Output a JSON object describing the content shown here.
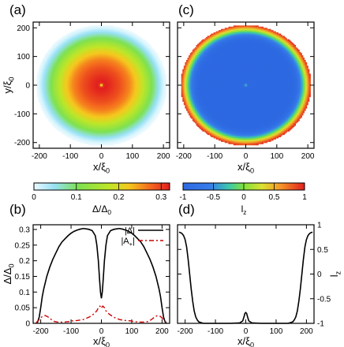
{
  "chart_data": [
    {
      "panel": "(a)",
      "type": "heatmap",
      "description_from_pixels": "radial ring of gap magnitude, maximum near center, small dip at origin",
      "xlabel": "x/ξ0",
      "ylabel": "y/ξ0",
      "xlim": [
        -220,
        220
      ],
      "ylim": [
        -220,
        220
      ],
      "xticks": [
        -200,
        -100,
        0,
        100,
        200
      ],
      "yticks": [
        -200,
        -100,
        0,
        100,
        200
      ],
      "colorbar": {
        "label": "Δ/Δ0",
        "range": [
          0,
          0.32
        ],
        "ticks": [
          0,
          0.1,
          0.2,
          0.3
        ]
      },
      "radial_profile": {
        "r": [
          0,
          6,
          12,
          30,
          60,
          90,
          120,
          150,
          180,
          200,
          210
        ],
        "value": [
          0.12,
          0.3,
          0.32,
          0.31,
          0.29,
          0.26,
          0.21,
          0.14,
          0.06,
          0.01,
          0.0
        ]
      }
    },
    {
      "panel": "(b)",
      "type": "line",
      "xlabel": "x/ξ0",
      "ylabel": "Δ/Δ0",
      "xlim": [
        -225,
        225
      ],
      "ylim": [
        0,
        0.315
      ],
      "xticks": [
        -200,
        -100,
        0,
        100,
        200
      ],
      "yticks": [
        0,
        0.05,
        0.1,
        0.15,
        0.2,
        0.25,
        0.3
      ],
      "legend_position": "top-right",
      "series": [
        {
          "name": "|Δ|",
          "style": "solid",
          "color": "#000000",
          "x": [
            -215,
            -210,
            -205,
            -200,
            -195,
            -190,
            -185,
            -180,
            -170,
            -160,
            -150,
            -140,
            -130,
            -120,
            -110,
            -100,
            -90,
            -80,
            -70,
            -60,
            -50,
            -40,
            -30,
            -20,
            -15,
            -10,
            -6,
            -3,
            0,
            3,
            6,
            10,
            15,
            20,
            30,
            40,
            50,
            60,
            70,
            80,
            90,
            100,
            110,
            120,
            130,
            140,
            150,
            160,
            170,
            180,
            185,
            190,
            195,
            200,
            205,
            210,
            215
          ],
          "y": [
            0,
            0.005,
            0.02,
            0.05,
            0.085,
            0.11,
            0.13,
            0.15,
            0.18,
            0.205,
            0.225,
            0.245,
            0.26,
            0.27,
            0.28,
            0.288,
            0.294,
            0.298,
            0.301,
            0.303,
            0.302,
            0.3,
            0.296,
            0.28,
            0.25,
            0.2,
            0.14,
            0.1,
            0.08,
            0.1,
            0.14,
            0.2,
            0.25,
            0.28,
            0.296,
            0.3,
            0.302,
            0.303,
            0.301,
            0.298,
            0.294,
            0.288,
            0.28,
            0.27,
            0.26,
            0.245,
            0.225,
            0.205,
            0.18,
            0.15,
            0.13,
            0.11,
            0.085,
            0.05,
            0.02,
            0.005,
            0
          ]
        },
        {
          "name": "|A+|",
          "style": "dash-dot",
          "color": "#cc0000",
          "x": [
            -215,
            -205,
            -195,
            -185,
            -175,
            -165,
            -155,
            -145,
            -135,
            -125,
            -115,
            -105,
            -95,
            -80,
            -60,
            -40,
            -25,
            -15,
            -10,
            -5,
            -2,
            0,
            2,
            5,
            10,
            15,
            25,
            40,
            60,
            80,
            95,
            105,
            115,
            125,
            135,
            145,
            155,
            165,
            175,
            185,
            195,
            205,
            215
          ],
          "y": [
            0.002,
            0.012,
            0.022,
            0.025,
            0.02,
            0.012,
            0.006,
            0.004,
            0.004,
            0.004,
            0.005,
            0.006,
            0.008,
            0.009,
            0.012,
            0.02,
            0.03,
            0.04,
            0.05,
            0.055,
            0.052,
            0.048,
            0.052,
            0.055,
            0.05,
            0.04,
            0.03,
            0.02,
            0.012,
            0.009,
            0.008,
            0.006,
            0.005,
            0.004,
            0.004,
            0.004,
            0.006,
            0.012,
            0.02,
            0.025,
            0.022,
            0.012,
            0.002
          ]
        }
      ]
    },
    {
      "panel": "(c)",
      "type": "heatmap",
      "description_from_pixels": "lz texture: uniform blue (-1) disk interior, green-yellow-orange ring at edge, bright point at origin",
      "xlabel": "x/ξ0",
      "xlim": [
        -220,
        220
      ],
      "ylim": [
        -220,
        220
      ],
      "xticks": [
        -200,
        -100,
        0,
        100,
        200
      ],
      "yticks": [
        -200,
        -100,
        0,
        100,
        200
      ],
      "colorbar": {
        "label": "lz",
        "range": [
          -1,
          1
        ],
        "ticks": [
          -1,
          -0.5,
          0,
          0.5,
          1
        ]
      },
      "radial_profile": {
        "r": [
          0,
          3,
          8,
          150,
          165,
          175,
          185,
          195,
          203,
          210
        ],
        "value": [
          1,
          -0.5,
          -1,
          -1,
          -0.9,
          -0.6,
          -0.2,
          0.3,
          0.7,
          0.95
        ]
      }
    },
    {
      "panel": "(d)",
      "type": "line",
      "xlabel": "x/ξ0",
      "ylabel": "lz",
      "xlim": [
        -225,
        225
      ],
      "ylim": [
        -1,
        1
      ],
      "xticks": [
        -200,
        -100,
        0,
        100,
        200
      ],
      "yticks": [
        -1,
        -0.5,
        0,
        0.5,
        1
      ],
      "series": [
        {
          "style": "solid",
          "color": "#000000",
          "x": [
            -220,
            -215,
            -210,
            -205,
            -200,
            -195,
            -190,
            -185,
            -180,
            -175,
            -170,
            -165,
            -160,
            -155,
            -150,
            -140,
            -100,
            -50,
            -20,
            -10,
            -5,
            -3,
            0,
            3,
            5,
            10,
            20,
            50,
            100,
            140,
            150,
            155,
            160,
            165,
            170,
            175,
            180,
            185,
            190,
            195,
            200,
            205,
            210,
            215,
            220
          ],
          "y": [
            0.85,
            0.84,
            0.82,
            0.78,
            0.7,
            0.55,
            0.3,
            0.0,
            -0.3,
            -0.55,
            -0.75,
            -0.87,
            -0.93,
            -0.97,
            -0.98,
            -1.0,
            -1.0,
            -1.0,
            -0.99,
            -0.95,
            -0.85,
            -0.8,
            -0.78,
            -0.8,
            -0.85,
            -0.95,
            -0.99,
            -1.0,
            -1.0,
            -1.0,
            -0.98,
            -0.97,
            -0.93,
            -0.87,
            -0.75,
            -0.55,
            -0.3,
            0.0,
            0.3,
            0.55,
            0.7,
            0.78,
            0.82,
            0.84,
            0.85
          ]
        }
      ]
    }
  ]
}
